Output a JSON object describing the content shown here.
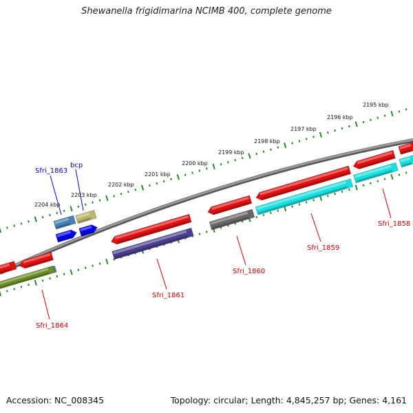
{
  "header": {
    "title": "Shewanella frigidimarina NCIMB 400, complete genome"
  },
  "footer": {
    "accession": "Accession: NC_008345",
    "summary": "Topology: circular; Length: 4,845,257 bp; Genes: 4,161"
  },
  "scale_labels": [
    "2195 kbp",
    "2196 kbp",
    "2197 kbp",
    "2198 kbp",
    "2199 kbp",
    "2200 kbp",
    "2201 kbp",
    "2202 kbp",
    "2203 kbp",
    "2204 kbp"
  ],
  "gene_labels": [
    {
      "text": "Sfri_1863",
      "color": "#0000bb"
    },
    {
      "text": "bcp",
      "color": "#0000bb"
    },
    {
      "text": "Sfri_1858",
      "color": "#cc0000"
    },
    {
      "text": "Sfri_1859",
      "color": "#cc0000"
    },
    {
      "text": "Sfri_1860",
      "color": "#cc0000"
    },
    {
      "text": "Sfri_1861",
      "color": "#cc0000"
    },
    {
      "text": "Sfri_1864",
      "color": "#cc0000"
    }
  ],
  "colors": {
    "backbone": "#808080",
    "tick": "#228B22",
    "cds": "#e01010",
    "slate_blue": "#4a3f8f",
    "cyan": "#18e0e0",
    "gray_feature": "#666666",
    "olive": "#6b8e23",
    "steel_blue": "#4682b4",
    "khaki": "#bdb76b",
    "blue": "#0000ee"
  }
}
